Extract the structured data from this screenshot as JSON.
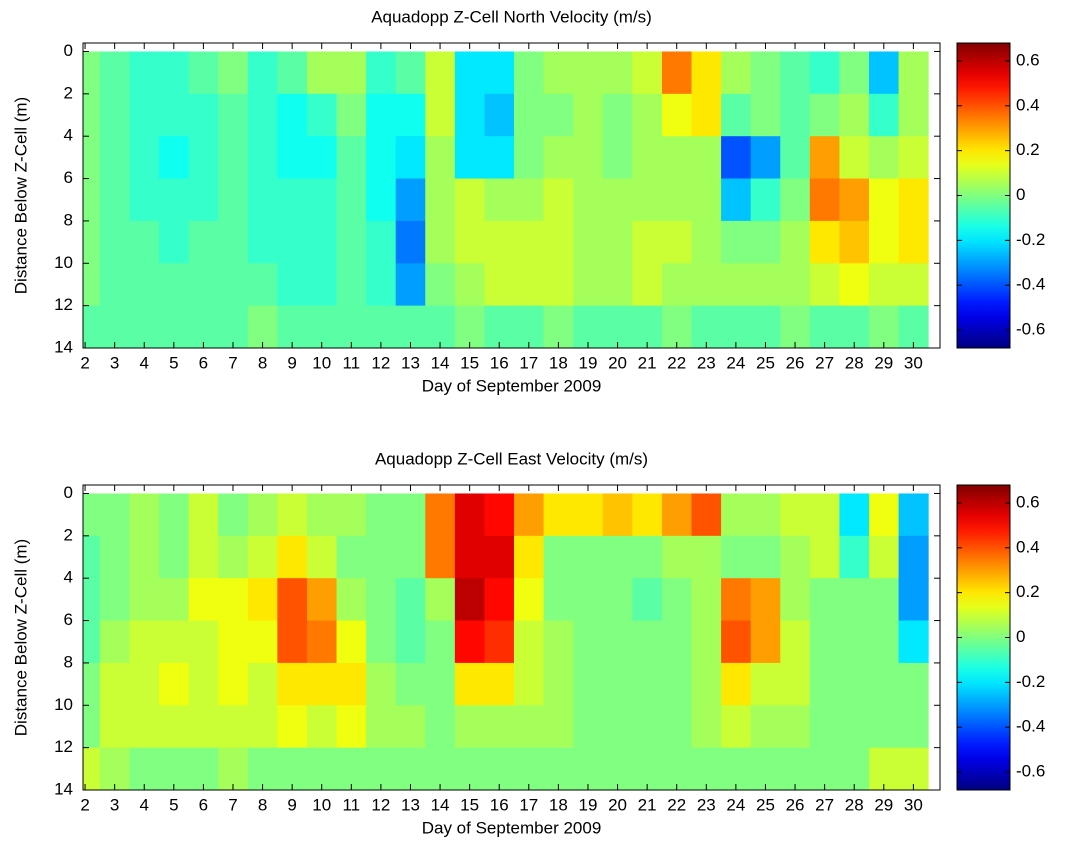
{
  "chart_data": [
    {
      "type": "heatmap",
      "title": "Aquadopp Z-Cell North Velocity (m/s)",
      "xlabel": "Day of September 2009",
      "ylabel": "Distance Below Z-Cell (m)",
      "colormap": "jet",
      "x": [
        2,
        3,
        4,
        5,
        6,
        7,
        8,
        9,
        10,
        11,
        12,
        13,
        14,
        15,
        16,
        17,
        18,
        19,
        20,
        21,
        22,
        23,
        24,
        25,
        26,
        27,
        28,
        29,
        30
      ],
      "y": [
        1,
        3,
        5,
        7,
        9,
        11,
        13
      ],
      "values": [
        [
          0,
          -0.05,
          -0.1,
          -0.1,
          -0.05,
          0,
          -0.1,
          -0.05,
          0.05,
          0.05,
          -0.1,
          -0.05,
          0.1,
          -0.2,
          -0.2,
          0,
          0.05,
          0.05,
          0.05,
          0.1,
          0.35,
          0.2,
          0.05,
          0,
          -0.05,
          -0.1,
          0,
          -0.25,
          0.05
        ],
        [
          0,
          -0.05,
          -0.1,
          -0.1,
          -0.1,
          -0.05,
          -0.1,
          -0.15,
          -0.1,
          0,
          -0.15,
          -0.15,
          0.1,
          -0.2,
          -0.25,
          0,
          0,
          0.05,
          0,
          0.05,
          0.15,
          0.2,
          -0.05,
          0,
          -0.05,
          0,
          0.05,
          -0.1,
          0.05
        ],
        [
          0,
          -0.05,
          -0.1,
          -0.15,
          -0.1,
          -0.05,
          -0.1,
          -0.15,
          -0.15,
          -0.05,
          -0.15,
          -0.2,
          0.05,
          -0.2,
          -0.2,
          0,
          0.05,
          0.05,
          0,
          0.05,
          0.05,
          0.05,
          -0.4,
          -0.3,
          -0.05,
          0.3,
          0.1,
          0.05,
          0.1
        ],
        [
          0,
          -0.05,
          -0.1,
          -0.1,
          -0.1,
          -0.05,
          -0.1,
          -0.1,
          -0.1,
          -0.05,
          -0.15,
          -0.3,
          0.05,
          0.1,
          0.05,
          0.05,
          0.1,
          0.05,
          0.05,
          0.05,
          0.05,
          0.05,
          -0.25,
          -0.1,
          0,
          0.35,
          0.3,
          0.15,
          0.2
        ],
        [
          0,
          -0.05,
          -0.05,
          -0.1,
          -0.05,
          -0.05,
          -0.1,
          -0.1,
          -0.1,
          -0.05,
          -0.1,
          -0.35,
          0.05,
          0.1,
          0.1,
          0.1,
          0.1,
          0.05,
          0.05,
          0.1,
          0.1,
          0.05,
          0,
          0,
          0.05,
          0.2,
          0.25,
          0.15,
          0.2
        ],
        [
          0,
          -0.05,
          -0.05,
          -0.05,
          -0.05,
          -0.05,
          -0.05,
          -0.1,
          -0.1,
          -0.05,
          -0.1,
          -0.3,
          0,
          0.05,
          0.1,
          0.1,
          0.1,
          0.05,
          0.05,
          0.1,
          0.05,
          0.05,
          0.05,
          0.05,
          0.05,
          0.1,
          0.15,
          0.1,
          0.1
        ],
        [
          -0.05,
          -0.05,
          -0.05,
          -0.05,
          -0.05,
          -0.05,
          0,
          -0.05,
          -0.05,
          -0.05,
          -0.05,
          -0.05,
          -0.05,
          0,
          -0.05,
          -0.05,
          0,
          -0.05,
          -0.05,
          -0.05,
          0,
          -0.05,
          -0.05,
          -0.05,
          0,
          -0.05,
          -0.05,
          0,
          -0.05
        ]
      ],
      "xlim": [
        1.93,
        30.9
      ],
      "ylim": [
        14,
        -0.4
      ],
      "xticks": [
        2,
        3,
        4,
        5,
        6,
        7,
        8,
        9,
        10,
        11,
        12,
        13,
        14,
        15,
        16,
        17,
        18,
        19,
        20,
        21,
        22,
        23,
        24,
        25,
        26,
        27,
        28,
        29,
        30
      ],
      "yticks": [
        0,
        2,
        4,
        6,
        8,
        10,
        12,
        14
      ],
      "clim": [
        -0.68,
        0.68
      ],
      "cticks": [
        -0.6,
        -0.4,
        -0.2,
        0,
        0.2,
        0.4,
        0.6
      ]
    },
    {
      "type": "heatmap",
      "title": "Aquadopp Z-Cell East Velocity (m/s)",
      "xlabel": "Day of September 2009",
      "ylabel": "Distance Below Z-Cell (m)",
      "colormap": "jet",
      "x": [
        2,
        3,
        4,
        5,
        6,
        7,
        8,
        9,
        10,
        11,
        12,
        13,
        14,
        15,
        16,
        17,
        18,
        19,
        20,
        21,
        22,
        23,
        24,
        25,
        26,
        27,
        28,
        29,
        30
      ],
      "y": [
        1,
        3,
        5,
        7,
        9,
        11,
        13
      ],
      "values": [
        [
          0,
          0,
          0.05,
          0,
          0.1,
          0,
          0.05,
          0.1,
          0.05,
          0.05,
          0,
          0,
          0.35,
          0.55,
          0.5,
          0.3,
          0.2,
          0.2,
          0.25,
          0.2,
          0.3,
          0.4,
          0.05,
          0.05,
          0.1,
          0.1,
          -0.2,
          0.15,
          -0.25
        ],
        [
          -0.05,
          0,
          0.05,
          0,
          0.1,
          0.05,
          0.1,
          0.2,
          0.1,
          0,
          0,
          0,
          0.35,
          0.55,
          0.55,
          0.2,
          0,
          0,
          0,
          0,
          0.05,
          0.05,
          0,
          0,
          0.05,
          0.1,
          -0.1,
          0.1,
          -0.3
        ],
        [
          -0.05,
          0,
          0.05,
          0.05,
          0.15,
          0.15,
          0.2,
          0.4,
          0.3,
          0.05,
          0,
          -0.05,
          0.05,
          0.6,
          0.5,
          0.15,
          0,
          0,
          0,
          -0.05,
          0,
          0.05,
          0.35,
          0.3,
          0.05,
          0,
          0,
          0,
          -0.3
        ],
        [
          -0.05,
          0.05,
          0.1,
          0.1,
          0.1,
          0.15,
          0.15,
          0.4,
          0.35,
          0.15,
          0,
          -0.05,
          0,
          0.5,
          0.45,
          0.1,
          0.05,
          0,
          0,
          0,
          0,
          0.05,
          0.4,
          0.3,
          0.1,
          0,
          0,
          0,
          -0.2
        ],
        [
          0,
          0.1,
          0.1,
          0.15,
          0.1,
          0.15,
          0.1,
          0.2,
          0.2,
          0.2,
          0.05,
          0,
          0,
          0.2,
          0.2,
          0.1,
          0.05,
          0,
          0,
          0,
          0,
          0.05,
          0.2,
          0.1,
          0.1,
          0,
          0,
          0,
          0
        ],
        [
          0,
          0.1,
          0.1,
          0.1,
          0.1,
          0.1,
          0.1,
          0.15,
          0.1,
          0.15,
          0.05,
          0.05,
          0,
          0.05,
          0.05,
          0.05,
          0.05,
          0,
          0,
          0,
          0,
          0.05,
          0.1,
          0.05,
          0.05,
          0,
          0,
          0,
          0
        ],
        [
          0.1,
          0.05,
          0,
          0,
          0,
          0.05,
          0,
          0,
          0,
          0,
          0,
          0,
          0,
          0,
          0,
          0,
          0,
          0,
          0,
          0,
          0,
          0,
          0,
          0,
          0,
          0,
          0,
          0.1,
          0.1
        ]
      ],
      "xlim": [
        1.93,
        30.9
      ],
      "ylim": [
        14,
        -0.4
      ],
      "xticks": [
        2,
        3,
        4,
        5,
        6,
        7,
        8,
        9,
        10,
        11,
        12,
        13,
        14,
        15,
        16,
        17,
        18,
        19,
        20,
        21,
        22,
        23,
        24,
        25,
        26,
        27,
        28,
        29,
        30
      ],
      "yticks": [
        0,
        2,
        4,
        6,
        8,
        10,
        12,
        14
      ],
      "clim": [
        -0.68,
        0.68
      ],
      "cticks": [
        -0.6,
        -0.4,
        -0.2,
        0,
        0.2,
        0.4,
        0.6
      ]
    }
  ]
}
